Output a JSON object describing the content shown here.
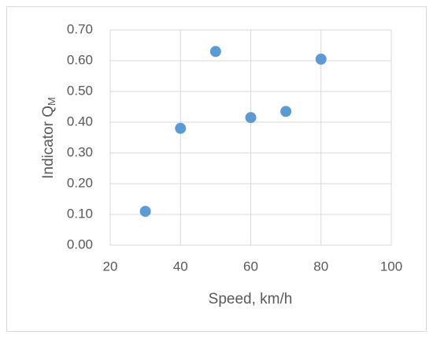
{
  "chart_data": {
    "type": "scatter",
    "x_label": "Speed, km/h",
    "y_label": {
      "text": "Indicator Q",
      "subscript": "M"
    },
    "x": [
      30,
      40,
      50,
      60,
      70,
      80
    ],
    "values": [
      0.11,
      0.38,
      0.63,
      0.415,
      0.435,
      0.605
    ],
    "color": "#5b9bd5",
    "xlim": [
      20,
      100
    ],
    "xticks": [
      20,
      40,
      60,
      80,
      100
    ],
    "ylim": [
      0,
      0.7
    ],
    "yticks": [
      {
        "value": 0,
        "label": "0.00"
      },
      {
        "value": 0.1,
        "label": "0.10"
      },
      {
        "value": 0.2,
        "label": "0.20"
      },
      {
        "value": 0.3,
        "label": "0.30"
      },
      {
        "value": 0.4,
        "label": "0.40"
      },
      {
        "value": 0.5,
        "label": "0.50"
      },
      {
        "value": 0.6,
        "label": "0.60"
      },
      {
        "value": 0.7,
        "label": "0.70"
      }
    ],
    "grid": true
  }
}
